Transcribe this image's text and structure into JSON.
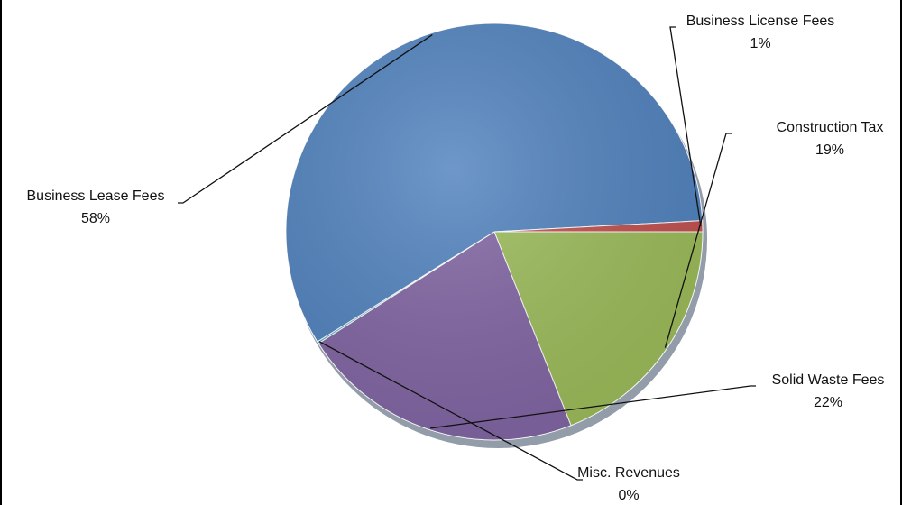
{
  "chart_data": {
    "type": "pie",
    "title": "",
    "slices": [
      {
        "label": "Construction Tax",
        "value": 19,
        "pct_label": "19%",
        "color": "#9BBB59"
      },
      {
        "label": "Solid Waste Fees",
        "value": 22,
        "pct_label": "22%",
        "color": "#8064A2"
      },
      {
        "label": "Misc. Revenues",
        "value": 0.15,
        "pct_label": "0%",
        "color": "#4BACC6"
      },
      {
        "label": "Business Lease Fees",
        "value": 58,
        "pct_label": "58%",
        "color": "#4F81BD"
      },
      {
        "label": "Business License Fees",
        "value": 0.85,
        "pct_label": "1%",
        "color": "#C0504D"
      }
    ],
    "start_angle_deg": 0,
    "direction": "clockwise",
    "legend": "none"
  }
}
